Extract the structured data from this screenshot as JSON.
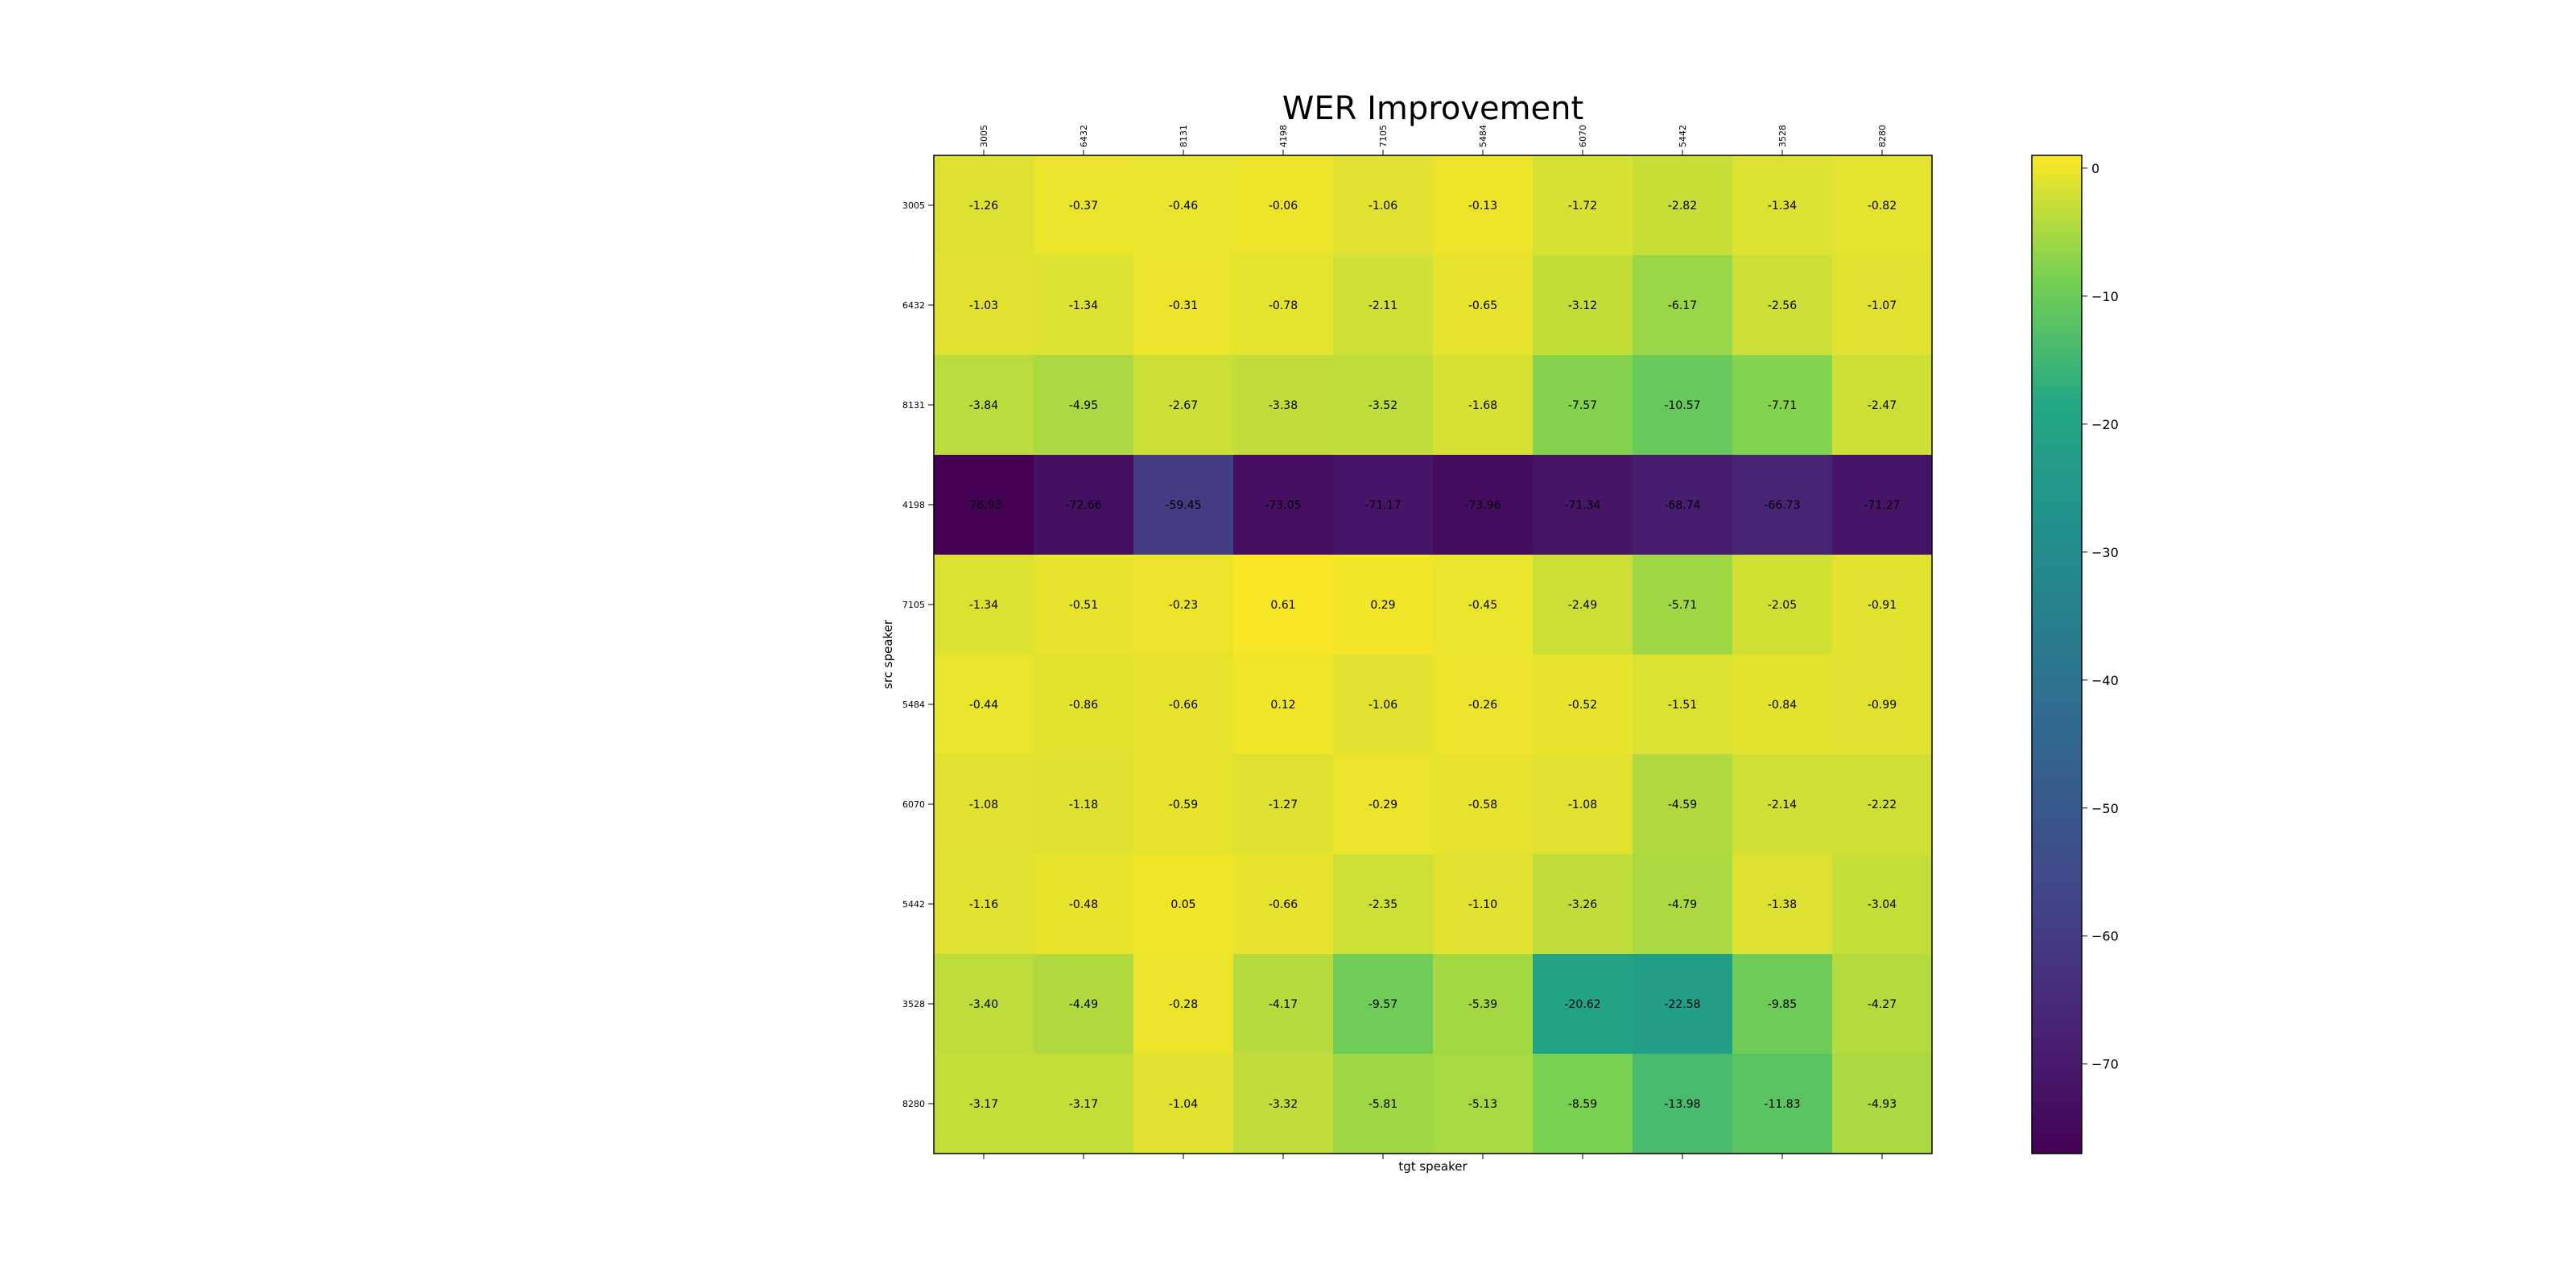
{
  "chart_data": {
    "type": "heatmap",
    "title": "WER Improvement",
    "xlabel": "tgt speaker",
    "ylabel": "src speaker",
    "x_categories": [
      "3005",
      "6432",
      "8131",
      "4198",
      "7105",
      "5484",
      "6070",
      "5442",
      "3528",
      "8280"
    ],
    "y_categories": [
      "3005",
      "6432",
      "8131",
      "4198",
      "7105",
      "5484",
      "6070",
      "5442",
      "3528",
      "8280"
    ],
    "values": [
      [
        "-1.26",
        "-0.37",
        "-0.46",
        "-0.06",
        "-1.06",
        "-0.13",
        "-1.72",
        "-2.82",
        "-1.34",
        "-0.82"
      ],
      [
        "-1.03",
        "-1.34",
        "-0.31",
        "-0.78",
        "-2.11",
        "-0.65",
        "-3.12",
        "-6.17",
        "-2.56",
        "-1.07"
      ],
      [
        "-3.84",
        "-4.95",
        "-2.67",
        "-3.38",
        "-3.52",
        "-1.68",
        "-7.57",
        "-10.57",
        "-7.71",
        "-2.47"
      ],
      [
        "-76.93",
        "-72.66",
        "-59.45",
        "-73.05",
        "-71.17",
        "-73.96",
        "-71.34",
        "-68.74",
        "-66.73",
        "-71.27"
      ],
      [
        "-1.34",
        "-0.51",
        "-0.23",
        "0.61",
        "0.29",
        "-0.45",
        "-2.49",
        "-5.71",
        "-2.05",
        "-0.91"
      ],
      [
        "-0.44",
        "-0.86",
        "-0.66",
        "0.12",
        "-1.06",
        "-0.26",
        "-0.52",
        "-1.51",
        "-0.84",
        "-0.99"
      ],
      [
        "-1.08",
        "-1.18",
        "-0.59",
        "-1.27",
        "-0.29",
        "-0.58",
        "-1.08",
        "-4.59",
        "-2.14",
        "-2.22"
      ],
      [
        "-1.16",
        "-0.48",
        "0.05",
        "-0.66",
        "-2.35",
        "-1.10",
        "-3.26",
        "-4.79",
        "-1.38",
        "-3.04"
      ],
      [
        "-3.40",
        "-4.49",
        "-0.28",
        "-4.17",
        "-9.57",
        "-5.39",
        "-20.62",
        "-22.58",
        "-9.85",
        "-4.27"
      ],
      [
        "-3.17",
        "-3.17",
        "-1.04",
        "-3.32",
        "-5.81",
        "-5.13",
        "-8.59",
        "-13.98",
        "-11.83",
        "-4.93"
      ]
    ],
    "colorbar": {
      "colormap": "viridis",
      "range": [
        -77,
        1
      ],
      "ticks": [
        0,
        -10,
        -20,
        -30,
        -40,
        -50,
        -60,
        -70
      ],
      "tick_labels": [
        "0",
        "−10",
        "−20",
        "−30",
        "−40",
        "−50",
        "−60",
        "−70"
      ]
    }
  }
}
